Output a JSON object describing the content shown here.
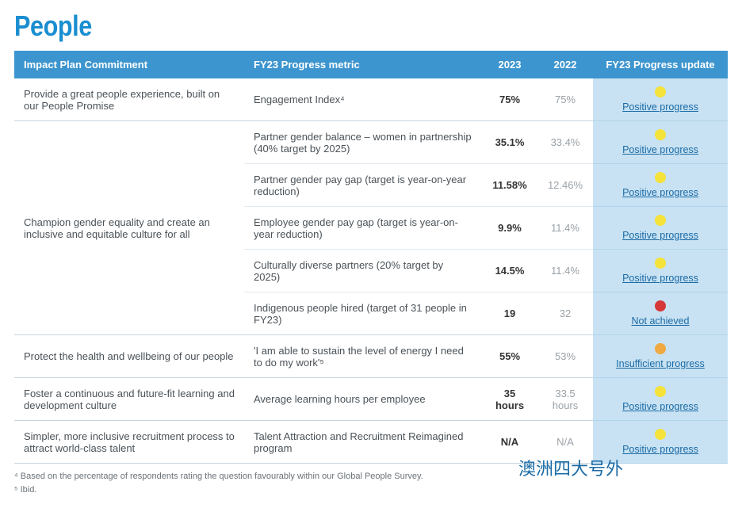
{
  "title": "People",
  "headers": {
    "commitment": "Impact Plan Commitment",
    "metric": "FY23 Progress metric",
    "y2023": "2023",
    "y2022": "2022",
    "update": "FY23 Progress update"
  },
  "status_colors": {
    "positive": "#f5e23a",
    "insufficient": "#f0a840",
    "not_achieved": "#d63838"
  },
  "status_labels": {
    "positive": "Positive progress",
    "insufficient": "Insufficient progress",
    "not_achieved": "Not achieved"
  },
  "groups": [
    {
      "commitment": "Provide a great people experience, built on our People Promise",
      "rows": [
        {
          "metric": "Engagement Index⁴",
          "y2023": "75%",
          "y2022": "75%",
          "status": "positive"
        }
      ]
    },
    {
      "commitment": "Champion gender equality and create an inclusive and equitable culture for all",
      "rows": [
        {
          "metric": "Partner gender balance – women in partnership (40% target by 2025)",
          "y2023": "35.1%",
          "y2022": "33.4%",
          "status": "positive"
        },
        {
          "metric": "Partner gender pay gap (target is year-on-year reduction)",
          "y2023": "11.58%",
          "y2022": "12.46%",
          "status": "positive"
        },
        {
          "metric": "Employee gender pay gap (target is year-on-year reduction)",
          "y2023": "9.9%",
          "y2022": "11.4%",
          "status": "positive"
        },
        {
          "metric": "Culturally diverse partners (20% target by 2025)",
          "y2023": "14.5%",
          "y2022": "11.4%",
          "status": "positive"
        },
        {
          "metric": "Indigenous people hired (target of 31 people in FY23)",
          "y2023": "19",
          "y2022": "32",
          "status": "not_achieved"
        }
      ]
    },
    {
      "commitment": "Protect the health and wellbeing of our people",
      "rows": [
        {
          "metric": "'I am able to sustain the level of energy I need to do my work'⁵",
          "y2023": "55%",
          "y2022": "53%",
          "status": "insufficient"
        }
      ]
    },
    {
      "commitment": "Foster a continuous and future-fit learning and development culture",
      "rows": [
        {
          "metric": "Average learning hours per employee",
          "y2023": "35 hours",
          "y2022": "33.5 hours",
          "status": "positive"
        }
      ]
    },
    {
      "commitment": "Simpler, more inclusive recruitment process to attract world-class talent",
      "rows": [
        {
          "metric": "Talent Attraction and Recruitment Reimagined program",
          "y2023": "N/A",
          "y2022": "N/A",
          "status": "positive"
        }
      ]
    }
  ],
  "footnotes": [
    "⁴ Based on the percentage of respondents rating the question favourably within our Global People Survey.",
    "⁵ Ibid."
  ],
  "watermark": "澳洲四大号外"
}
